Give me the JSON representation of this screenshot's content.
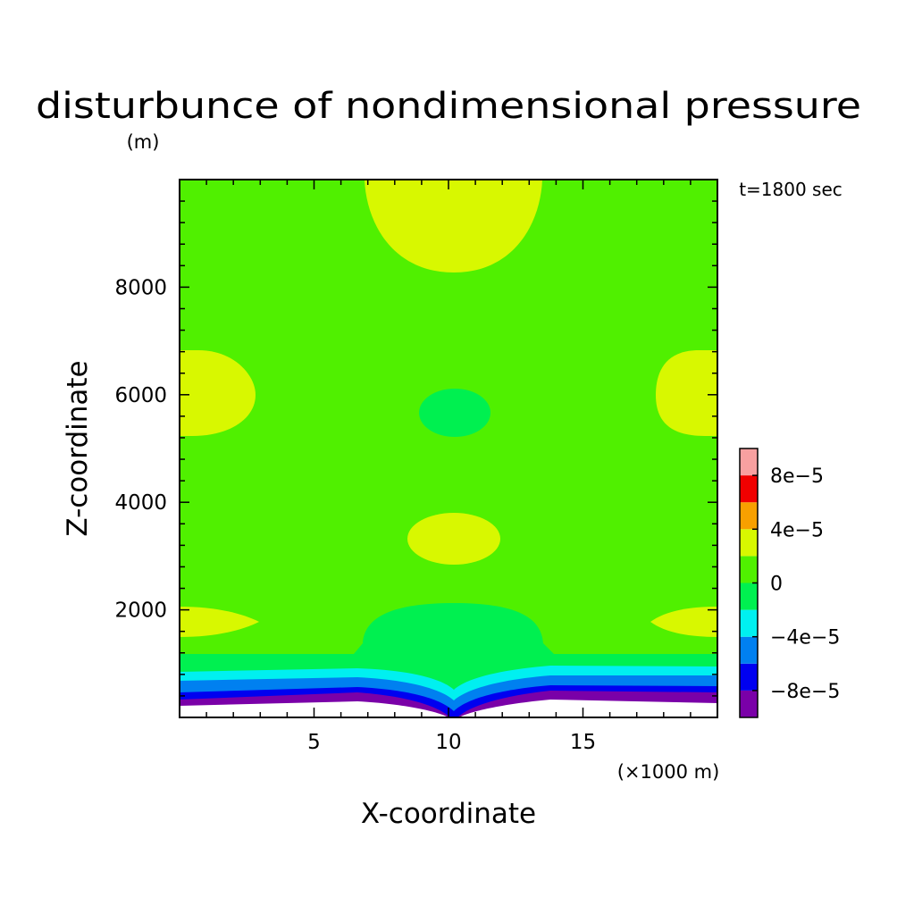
{
  "chart_data": {
    "type": "heatmap",
    "title": "disturbunce of nondimensional pressure",
    "subtitle_units": "(m)",
    "time_label": "t=1800 sec",
    "xlabel": "X-coordinate",
    "x_units_label": "(×1000 m)",
    "ylabel": "Z-coordinate",
    "xlim": [
      0,
      20
    ],
    "ylim": [
      0,
      10000
    ],
    "x_ticks": [
      5,
      10,
      15
    ],
    "x_tick_labels": [
      "5",
      "10",
      "15"
    ],
    "y_ticks": [
      2000,
      4000,
      6000,
      8000
    ],
    "y_tick_labels": [
      "2000",
      "4000",
      "6000",
      "8000"
    ],
    "colorbar": {
      "levels": [
        -0.0001,
        -8e-05,
        -6e-05,
        -4e-05,
        -2e-05,
        0,
        2e-05,
        4e-05,
        6e-05,
        8e-05,
        0.0001
      ],
      "colors": [
        "#7a00a8",
        "#0000f0",
        "#0080f0",
        "#00f0f0",
        "#00f050",
        "#50f000",
        "#d8f800",
        "#f8a000",
        "#f00000",
        "#f8a0a0"
      ],
      "tick_values": [
        -8e-05,
        -4e-05,
        0,
        4e-05,
        8e-05
      ],
      "tick_labels": [
        "−8e−5",
        "−4e−5",
        "0",
        "4e−5",
        "8e−5"
      ]
    },
    "background_level": "0 to 2e-5",
    "regions": [
      {
        "level": "2e-5 to 4e-5",
        "center_x": 10.1,
        "center_z": 9300,
        "note": "upper lobe"
      },
      {
        "level": "2e-5 to 4e-5",
        "center_x": 0.5,
        "center_z": 6000
      },
      {
        "level": "2e-5 to 4e-5",
        "center_x": 19.5,
        "center_z": 6000
      },
      {
        "level": "-2e-5 to 0",
        "center_x": 10.1,
        "center_z": 5650
      },
      {
        "level": "2e-5 to 4e-5",
        "center_x": 10.2,
        "center_z": 3300
      },
      {
        "level": "2e-5 to 4e-5",
        "center_x": 1.0,
        "center_z": 1800
      },
      {
        "level": "2e-5 to 4e-5",
        "center_x": 19.0,
        "center_z": 1800
      },
      {
        "level": "-2e-5 to 0",
        "center_x": 10.0,
        "center_z": 1400,
        "note": "low dome"
      }
    ]
  }
}
